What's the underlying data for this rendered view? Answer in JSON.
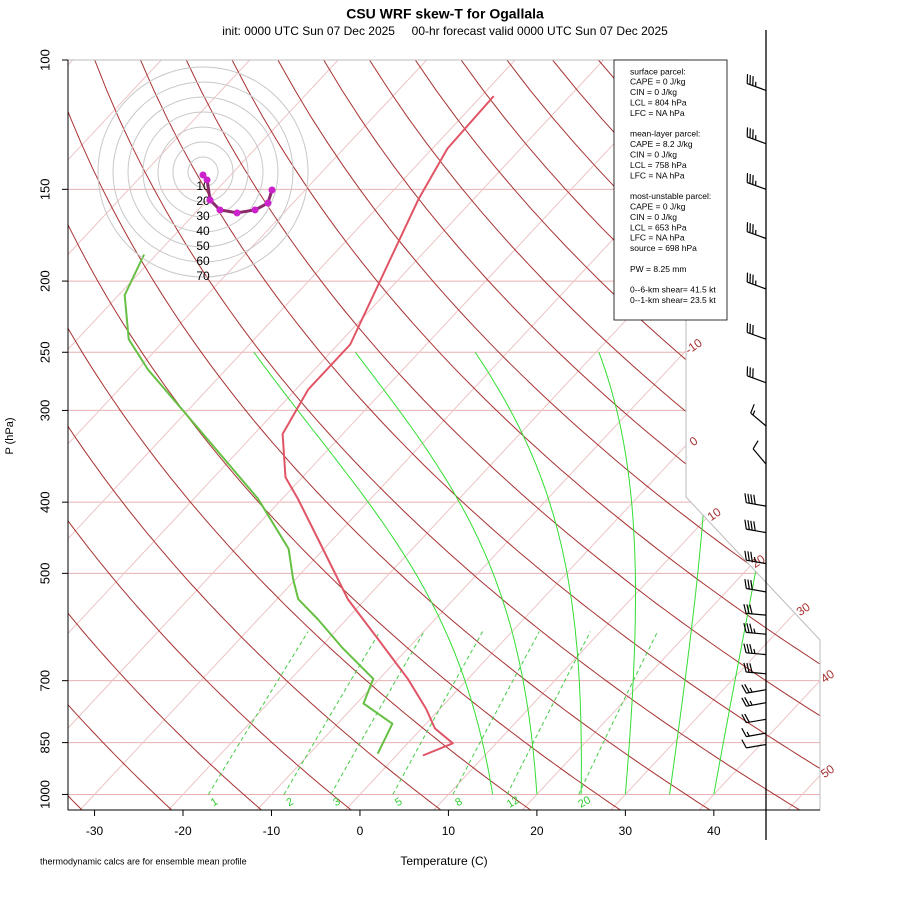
{
  "chart_data": {
    "type": "skewt",
    "title": "CSU WRF skew-T for Ogallala",
    "subtitle": "init: 0000 UTC Sun 07 Dec 2025     00-hr forecast valid 0000 UTC Sun 07 Dec 2025",
    "xlabel": "Temperature (C)",
    "ylabel": "P (hPa)",
    "footnote": "thermodynamic calcs are for ensemble mean profile",
    "xlim": [
      -33,
      52
    ],
    "xticks": [
      -30,
      -20,
      -10,
      0,
      10,
      20,
      30,
      40
    ],
    "ylim": [
      1050,
      100
    ],
    "yticks": [
      100,
      150,
      200,
      250,
      300,
      400,
      500,
      700,
      850,
      1000
    ],
    "log_y": true,
    "isotherm_labels": [
      -10,
      0,
      10,
      20,
      30,
      40,
      50
    ],
    "mixing_ratio_labels": [
      1,
      2,
      3,
      5,
      8,
      12,
      20
    ],
    "temperature": {
      "color": "#e05565",
      "pressure": [
        885,
        852,
        813,
        764,
        696,
        614,
        542,
        449,
        396,
        370,
        323,
        281,
        244,
        155,
        132,
        112
      ],
      "values": [
        3.0,
        5.1,
        1.5,
        -1.6,
        -6.8,
        -14.4,
        -22,
        -31.7,
        -38.2,
        -41.9,
        -46.8,
        -48.6,
        -48.6,
        -56.2,
        -58.3,
        -58.6
      ]
    },
    "dewpoint": {
      "color": "#66c044",
      "pressure": [
        880,
        801,
        752,
        696,
        633,
        577,
        542,
        509,
        463,
        396,
        318,
        264,
        240,
        209,
        184
      ],
      "values": [
        -2.3,
        -3.8,
        -9.2,
        -10.7,
        -17.3,
        -23.3,
        -27.6,
        -30.3,
        -34,
        -42.7,
        -56.8,
        -68.8,
        -74.2,
        -79.3,
        -81.4
      ]
    },
    "hodograph": {
      "rings": [
        10,
        20,
        30,
        40,
        50,
        60,
        70
      ],
      "color": "#cc22cc",
      "u": [
        0,
        2.7,
        4.7,
        11.3,
        22.7,
        34.7,
        43.3,
        46
      ],
      "v": [
        -2,
        -5.3,
        -18.7,
        -25.3,
        -27.3,
        -25.3,
        -20.7,
        -12
      ]
    },
    "winds": {
      "pressure": [
        110,
        130,
        150,
        175,
        205,
        240,
        275,
        315,
        355,
        405,
        440,
        485,
        530,
        570,
        605,
        645,
        685,
        720,
        750,
        790,
        825,
        855
      ],
      "speed": [
        35,
        35,
        35,
        35,
        35,
        30,
        30,
        15,
        10,
        40,
        40,
        35,
        30,
        30,
        35,
        35,
        30,
        25,
        25,
        20,
        15,
        10
      ],
      "direction": [
        290,
        290,
        290,
        290,
        290,
        290,
        290,
        310,
        320,
        280,
        280,
        280,
        280,
        275,
        275,
        275,
        275,
        260,
        260,
        260,
        260,
        260
      ]
    },
    "info": [
      [
        "surface parcel:",
        "CAPE = 0 J/kg",
        "CIN = 0 J/kg",
        "LCL = 804 hPa",
        "LFC = NA hPa"
      ],
      [
        "mean-layer parcel:",
        "CAPE = 8.2 J/kg",
        "CIN = 0 J/kg",
        "LCL = 758 hPa",
        "LFC = NA hPa"
      ],
      [
        "most-unstable parcel:",
        "CAPE = 0 J/kg",
        "CIN = 0 J/kg",
        "LCL = 653 hPa",
        "LFC = NA hPa",
        "source = 698 hPa"
      ],
      [
        "PW =  8.25 mm"
      ],
      [
        "0--6-km shear= 41.5 kt",
        "0--1-km shear= 23.5 kt"
      ]
    ]
  }
}
